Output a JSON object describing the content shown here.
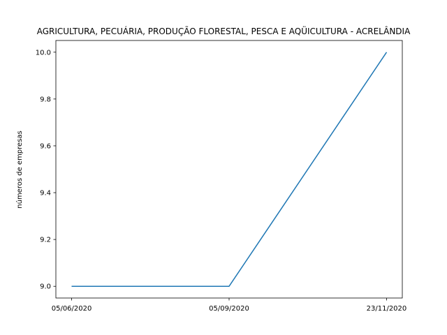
{
  "chart_data": {
    "type": "line",
    "title": "AGRICULTURA, PECUÁRIA, PRODUÇÃO FLORESTAL, PESCA E AQÜICULTURA - ACRELÂNDIA",
    "xlabel": "",
    "ylabel": "números de empresas",
    "categories": [
      "05/06/2020",
      "05/09/2020",
      "23/11/2020"
    ],
    "series": [
      {
        "values": [
          9.0,
          9.0,
          10.0
        ],
        "color": "#1f77b4"
      }
    ],
    "ylim": [
      8.95,
      10.05
    ],
    "yticks": [
      "9.0",
      "9.2",
      "9.4",
      "9.6",
      "9.8",
      "10.0"
    ],
    "grid": false,
    "legend": "none"
  }
}
